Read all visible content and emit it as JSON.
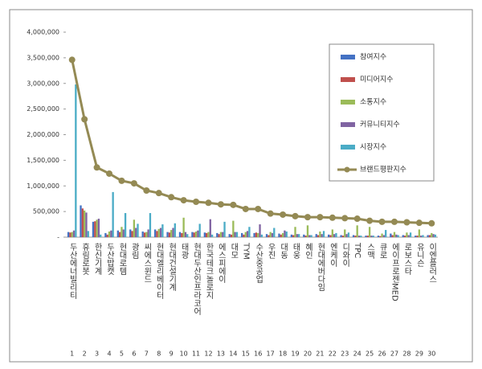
{
  "chart_data": {
    "type": "bar_line",
    "categories": [
      "두산에너빌리티",
      "휴림로봇",
      "한신기계",
      "두산밥캣",
      "현대로템",
      "광림",
      "씨에스윈드",
      "현대엘리베이터",
      "현대건설기계",
      "태광",
      "현대두산인프라코어",
      "한국테크놀로지",
      "에스피에이",
      "대모",
      "TYM",
      "수산중공업",
      "우진",
      "대동",
      "태웅",
      "혜인",
      "현대에버다임",
      "엔케이",
      "디와이",
      "TPC",
      "스맥",
      "큐로",
      "에이프로젠MED",
      "로보스타",
      "유니슨",
      "이엔플러스"
    ],
    "ranks": [
      1,
      2,
      3,
      4,
      5,
      6,
      7,
      8,
      9,
      10,
      11,
      12,
      13,
      14,
      15,
      16,
      17,
      18,
      19,
      20,
      21,
      22,
      23,
      24,
      25,
      26,
      27,
      28,
      29,
      30
    ],
    "series": [
      {
        "name": "참여지수",
        "color": "#4472c4",
        "kind": "bar",
        "values": [
          100000,
          620000,
          300000,
          80000,
          130000,
          150000,
          110000,
          150000,
          100000,
          100000,
          100000,
          90000,
          80000,
          60000,
          80000,
          80000,
          60000,
          70000,
          50000,
          50000,
          60000,
          50000,
          40000,
          40000,
          30000,
          30000,
          70000,
          40000,
          30000,
          40000
        ]
      },
      {
        "name": "미디어지수",
        "color": "#c0504d",
        "kind": "bar",
        "values": [
          90000,
          560000,
          310000,
          50000,
          100000,
          120000,
          90000,
          120000,
          90000,
          80000,
          90000,
          80000,
          60000,
          50000,
          50000,
          90000,
          40000,
          50000,
          40000,
          30000,
          40000,
          40000,
          30000,
          30000,
          30000,
          20000,
          40000,
          30000,
          30000,
          40000
        ]
      },
      {
        "name": "소통지수",
        "color": "#9bbb59",
        "kind": "bar",
        "values": [
          100000,
          520000,
          340000,
          110000,
          200000,
          340000,
          100000,
          160000,
          140000,
          380000,
          110000,
          100000,
          100000,
          320000,
          100000,
          80000,
          100000,
          80000,
          200000,
          230000,
          110000,
          150000,
          150000,
          230000,
          200000,
          70000,
          100000,
          90000,
          150000,
          80000
        ]
      },
      {
        "name": "커뮤니티지수",
        "color": "#8064a2",
        "kind": "bar",
        "values": [
          130000,
          480000,
          360000,
          130000,
          150000,
          180000,
          150000,
          180000,
          180000,
          100000,
          130000,
          350000,
          100000,
          100000,
          120000,
          250000,
          80000,
          130000,
          60000,
          40000,
          60000,
          60000,
          60000,
          30000,
          30000,
          40000,
          50000,
          40000,
          30000,
          60000
        ]
      },
      {
        "name": "시장지수",
        "color": "#4bacc6",
        "kind": "bar",
        "values": [
          2980000,
          120000,
          50000,
          880000,
          470000,
          260000,
          470000,
          250000,
          270000,
          60000,
          260000,
          50000,
          300000,
          100000,
          200000,
          50000,
          180000,
          110000,
          60000,
          40000,
          120000,
          80000,
          90000,
          30000,
          30000,
          140000,
          40000,
          90000,
          40000,
          50000
        ]
      },
      {
        "name": "브랜드평판지수",
        "color": "#948a54",
        "kind": "line",
        "values": [
          3460000,
          2300000,
          1360000,
          1240000,
          1100000,
          1050000,
          910000,
          860000,
          780000,
          720000,
          690000,
          670000,
          640000,
          630000,
          550000,
          550000,
          460000,
          440000,
          410000,
          390000,
          390000,
          380000,
          370000,
          360000,
          320000,
          300000,
          300000,
          290000,
          280000,
          270000
        ]
      }
    ],
    "ylim": [
      0,
      4000000
    ],
    "yticks": [
      {
        "value": 0,
        "label": "-"
      },
      {
        "value": 500000,
        "label": "500,000"
      },
      {
        "value": 1000000,
        "label": "1,000,000"
      },
      {
        "value": 1500000,
        "label": "1,500,000"
      },
      {
        "value": 2000000,
        "label": "2,000,000"
      },
      {
        "value": 2500000,
        "label": "2,500,000"
      },
      {
        "value": 3000000,
        "label": "3,000,000"
      },
      {
        "value": 3500000,
        "label": "3,500,000"
      },
      {
        "value": 4000000,
        "label": "4,000,000"
      }
    ],
    "legend": "upper right"
  }
}
